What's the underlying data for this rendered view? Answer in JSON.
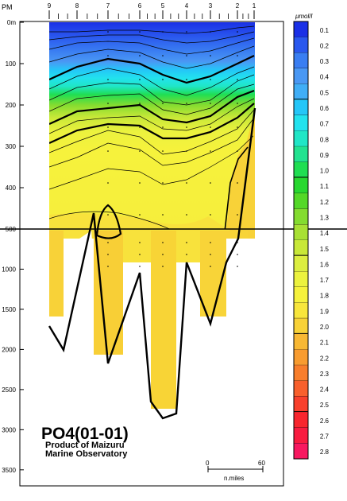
{
  "chart_data": {
    "type": "heatmap",
    "title": "PO4(01-01)",
    "credit_line1": "Product of Maizuru",
    "credit_line2": "Marine Observatory",
    "station_axis_label": "PM",
    "stations": [
      "9",
      "8",
      "7",
      "6",
      "5",
      "4",
      "3",
      "2",
      "1"
    ],
    "depth_ticks": [
      "0m",
      "100",
      "200",
      "300",
      "400",
      "500",
      "1000",
      "1500",
      "2000",
      "2500",
      "3000",
      "3500"
    ],
    "upper_depth_range": [
      0,
      500
    ],
    "lower_depth_range": [
      500,
      3700
    ],
    "scale_bar": {
      "start_label": "0",
      "end_label": "60",
      "unit": "n.miles"
    },
    "colorbar": {
      "unit": "μmol/l",
      "levels": [
        "0.1",
        "0.2",
        "0.3",
        "0.4",
        "0.5",
        "0.6",
        "0.7",
        "0.8",
        "0.9",
        "1.0",
        "1.1",
        "1.2",
        "1.3",
        "1.4",
        "1.5",
        "1.6",
        "1.7",
        "1.8",
        "1.9",
        "2.0",
        "2.1",
        "2.2",
        "2.3",
        "2.4",
        "2.5",
        "2.6",
        "2.7",
        "2.8"
      ],
      "colors": [
        "#1a30e6",
        "#2a58ee",
        "#3a7ef2",
        "#4a98f4",
        "#40aef6",
        "#24c6f8",
        "#22e2ee",
        "#20e6c6",
        "#22e290",
        "#20de52",
        "#28d830",
        "#54d828",
        "#84dc30",
        "#a8e034",
        "#c8e838",
        "#dcee40",
        "#ecf23e",
        "#f6f23c",
        "#f8e63c",
        "#f8d238",
        "#f8b834",
        "#f89c30",
        "#f87e2c",
        "#f8602c",
        "#f8402c",
        "#f8262e",
        "#f81c40",
        "#f81860"
      ],
      "thick_levels": [
        "0.5",
        "1.0",
        "1.5",
        "2.0",
        "2.5"
      ]
    }
  }
}
